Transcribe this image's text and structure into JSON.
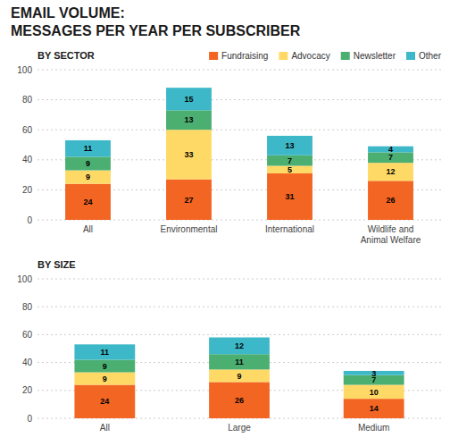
{
  "chart_data": [
    {
      "type": "bar",
      "title": "EMAIL VOLUME:\nMESSAGES PER YEAR PER SUBSCRIBER",
      "subtitle": "BY SECTOR",
      "stacked": true,
      "data_labels": true,
      "grid": true,
      "legend": "top",
      "categories": [
        "All",
        "Environmental",
        "International",
        "Wildlife and\nAnimal Welfare"
      ],
      "series": [
        {
          "name": "Fundraising",
          "color": "#f26522",
          "values": [
            24,
            27,
            31,
            26
          ]
        },
        {
          "name": "Advocacy",
          "color": "#ffd966",
          "values": [
            9,
            33,
            5,
            12
          ]
        },
        {
          "name": "Newsletter",
          "color": "#4caf72",
          "values": [
            9,
            13,
            7,
            7
          ]
        },
        {
          "name": "Other",
          "color": "#3db8c8",
          "values": [
            11,
            15,
            13,
            4
          ]
        }
      ],
      "ylim": [
        0,
        100
      ],
      "yticks": [
        0,
        20,
        40,
        60,
        80,
        100
      ]
    },
    {
      "type": "bar",
      "title": "BY SIZE",
      "stacked": true,
      "data_labels": true,
      "grid": true,
      "categories": [
        "All",
        "Large",
        "Medium"
      ],
      "series": [
        {
          "name": "Fundraising",
          "color": "#f26522",
          "values": [
            24,
            26,
            14
          ]
        },
        {
          "name": "Advocacy",
          "color": "#ffd966",
          "values": [
            9,
            9,
            10
          ]
        },
        {
          "name": "Newsletter",
          "color": "#4caf72",
          "values": [
            9,
            11,
            7
          ]
        },
        {
          "name": "Other",
          "color": "#3db8c8",
          "values": [
            11,
            12,
            3
          ]
        }
      ],
      "ylim": [
        0,
        100
      ],
      "yticks": [
        0,
        20,
        40,
        60,
        80,
        100
      ]
    }
  ]
}
